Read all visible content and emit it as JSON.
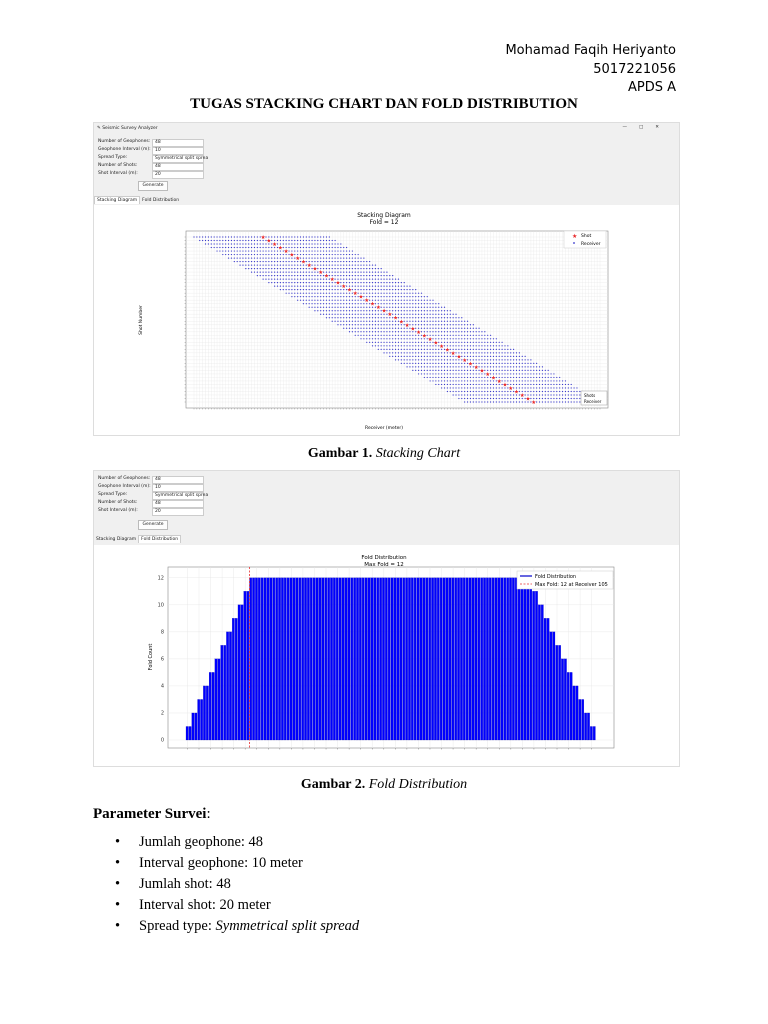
{
  "header": {
    "name": "Mohamad Faqih Heriyanto",
    "nrp": "5017221056",
    "class": "APDS A"
  },
  "title": "TUGAS STACKING CHART DAN FOLD DISTRIBUTION",
  "app": {
    "window_title": "Seismic Survey Analyzer",
    "window_controls": [
      "—",
      "□",
      "✕"
    ],
    "fields": [
      {
        "label": "Number of Geophones:",
        "value": "48"
      },
      {
        "label": "Geophone Interval (m):",
        "value": "10"
      },
      {
        "label": "Spread Type:",
        "value": "Symmetrical split sprea"
      },
      {
        "label": "Number of Shots:",
        "value": "48"
      },
      {
        "label": "Shot Interval (m):",
        "value": "20"
      }
    ],
    "generate_label": "Generate",
    "tabs": [
      "Stacking Diagram",
      "Fold Distribution"
    ]
  },
  "captions": [
    {
      "prefix": "Gambar 1.",
      "text": "Stacking Chart"
    },
    {
      "prefix": "Gambar 2.",
      "text": "Fold Distribution"
    }
  ],
  "params": {
    "heading": "Parameter Survei",
    "items": [
      {
        "text": "Jumlah geophone: 48"
      },
      {
        "text": "Interval geophone: 10 meter"
      },
      {
        "text": "Jumlah shot: 48"
      },
      {
        "text": "Interval shot: 20 meter"
      },
      {
        "label": "Spread type: ",
        "italic": "Symmetrical split spread"
      }
    ]
  },
  "colors": {
    "receiver": "#3333cc",
    "shot": "#e8282a",
    "bar": "#0000ff",
    "maxline": "#e83030"
  },
  "chart_data": [
    {
      "type": "scatter",
      "title": "Stacking Diagram",
      "subtitle": "Fold = 12",
      "xlabel": "Receiver (meter)",
      "ylabel": "Shot Number",
      "grid": true,
      "legend": {
        "placement": "top-right",
        "entries": [
          "Shot",
          "Receiver"
        ]
      },
      "legend2": {
        "placement": "bottom-right",
        "entries": [
          "Shots",
          "Receiver"
        ]
      },
      "num_shots": 48,
      "receivers_per_shot": 48,
      "shot_station_step": 2,
      "spread": "Symmetrical split spread"
    },
    {
      "type": "bar",
      "title": "Fold Distribution",
      "subtitle": "Max Fold = 12",
      "xlabel": "",
      "ylabel": "Fold Count",
      "ylim": [
        0,
        12.5
      ],
      "yticks": [
        0,
        2,
        4,
        6,
        8,
        10,
        12
      ],
      "grid": true,
      "legend": {
        "placement": "top-right",
        "entries": [
          "Fold Distribution",
          "Max Fold: 12 at Receiver 105"
        ]
      },
      "max_fold_index": 22,
      "values": [
        1,
        1,
        2,
        2,
        3,
        3,
        4,
        4,
        5,
        5,
        6,
        6,
        7,
        7,
        8,
        8,
        9,
        9,
        10,
        10,
        11,
        11,
        12,
        12,
        12,
        12,
        12,
        12,
        12,
        12,
        12,
        12,
        12,
        12,
        12,
        12,
        12,
        12,
        12,
        12,
        12,
        12,
        12,
        12,
        12,
        12,
        12,
        12,
        12,
        12,
        12,
        12,
        12,
        12,
        12,
        12,
        12,
        12,
        12,
        12,
        12,
        12,
        12,
        12,
        12,
        12,
        12,
        12,
        12,
        12,
        12,
        12,
        12,
        12,
        12,
        12,
        12,
        12,
        12,
        12,
        12,
        12,
        12,
        12,
        12,
        12,
        12,
        12,
        12,
        12,
        12,
        12,
        12,
        12,
        12,
        12,
        12,
        12,
        12,
        12,
        12,
        12,
        12,
        12,
        12,
        12,
        12,
        12,
        12,
        12,
        12,
        12,
        12,
        12,
        12,
        12,
        12,
        12,
        12,
        12,
        11,
        11,
        10,
        10,
        9,
        9,
        8,
        8,
        7,
        7,
        6,
        6,
        5,
        5,
        4,
        4,
        3,
        3,
        2,
        2,
        1,
        1
      ]
    }
  ]
}
